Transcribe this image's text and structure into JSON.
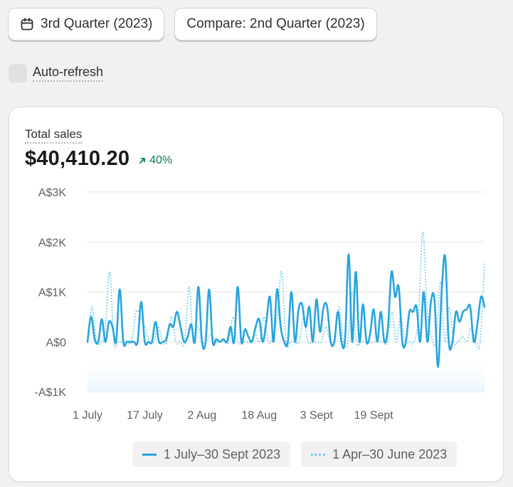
{
  "toolbar": {
    "date_range_label": "3rd Quarter (2023)",
    "compare_label": "Compare: 2nd Quarter (2023)"
  },
  "auto_refresh": {
    "label": "Auto-refresh",
    "checked": false
  },
  "card": {
    "title": "Total sales",
    "value": "$40,410.20",
    "change": "40%",
    "change_direction": "up",
    "change_color": "#0c7a4a"
  },
  "chart_data": {
    "type": "line",
    "title": "Total sales",
    "ylim": [
      -1000,
      3000
    ],
    "y_ticks": [
      {
        "value": 3000,
        "label": "A$3K"
      },
      {
        "value": 2000,
        "label": "A$2K"
      },
      {
        "value": 1000,
        "label": "A$1K"
      },
      {
        "value": 0,
        "label": "A$0"
      },
      {
        "value": -1000,
        "label": "-A$1K"
      }
    ],
    "x_ticks": [
      {
        "index": 0,
        "label": "1 July"
      },
      {
        "index": 16,
        "label": "17 July"
      },
      {
        "index": 32,
        "label": "2 Aug"
      },
      {
        "index": 48,
        "label": "18 Aug"
      },
      {
        "index": 64,
        "label": "3 Sept"
      },
      {
        "index": 80,
        "label": "19 Sept"
      }
    ],
    "grid": true,
    "series": [
      {
        "name": "1 July–30 Sept 2023",
        "style": "solid",
        "color": "#29a4dd",
        "values": [
          0,
          500,
          50,
          0,
          450,
          0,
          400,
          300,
          0,
          1050,
          0,
          0,
          0,
          0,
          0,
          800,
          0,
          0,
          0,
          400,
          0,
          0,
          50,
          350,
          300,
          600,
          300,
          0,
          100,
          350,
          0,
          1100,
          0,
          0,
          1050,
          0,
          50,
          0,
          50,
          0,
          300,
          0,
          1100,
          0,
          250,
          100,
          0,
          300,
          450,
          0,
          400,
          900,
          0,
          1050,
          300,
          0,
          0,
          1000,
          0,
          650,
          750,
          300,
          700,
          0,
          850,
          200,
          700,
          700,
          0,
          0,
          600,
          0,
          50,
          1750,
          0,
          1400,
          0,
          750,
          0,
          150,
          650,
          0,
          600,
          0,
          300,
          1400,
          900,
          1100,
          0,
          0,
          600,
          600,
          700,
          0,
          1000,
          0,
          800,
          850,
          -500,
          1000,
          1700,
          0,
          0,
          600,
          400,
          600,
          650,
          700,
          0,
          350,
          900,
          700
        ]
      },
      {
        "name": "1 Apr–30 June 2023",
        "style": "dotted",
        "color": "#7ccbee",
        "values": [
          0,
          700,
          0,
          0,
          200,
          1400,
          0,
          0,
          0,
          0,
          0,
          600,
          500,
          300,
          0,
          0,
          300,
          0,
          0,
          500,
          0,
          0,
          0,
          1100,
          0,
          300,
          0,
          0,
          150,
          0,
          0,
          0,
          0,
          500,
          0,
          0,
          0,
          0,
          150,
          0,
          500,
          0,
          100,
          500,
          1400,
          0,
          0,
          0,
          0,
          500,
          0,
          0,
          0,
          0,
          300,
          0,
          0,
          700,
          0,
          0,
          1000,
          0,
          0,
          0,
          0,
          0,
          0,
          0,
          0,
          600,
          0,
          500,
          0,
          0,
          0,
          500,
          2200,
          600,
          100,
          0,
          1200,
          0,
          700,
          0,
          0,
          100,
          0,
          300,
          0,
          0,
          1600
        ]
      }
    ],
    "legend_position": "bottom"
  },
  "legend": [
    {
      "label": "1 July–30 Sept 2023",
      "style": "solid"
    },
    {
      "label": "1 Apr–30 June 2023",
      "style": "dotted"
    }
  ]
}
